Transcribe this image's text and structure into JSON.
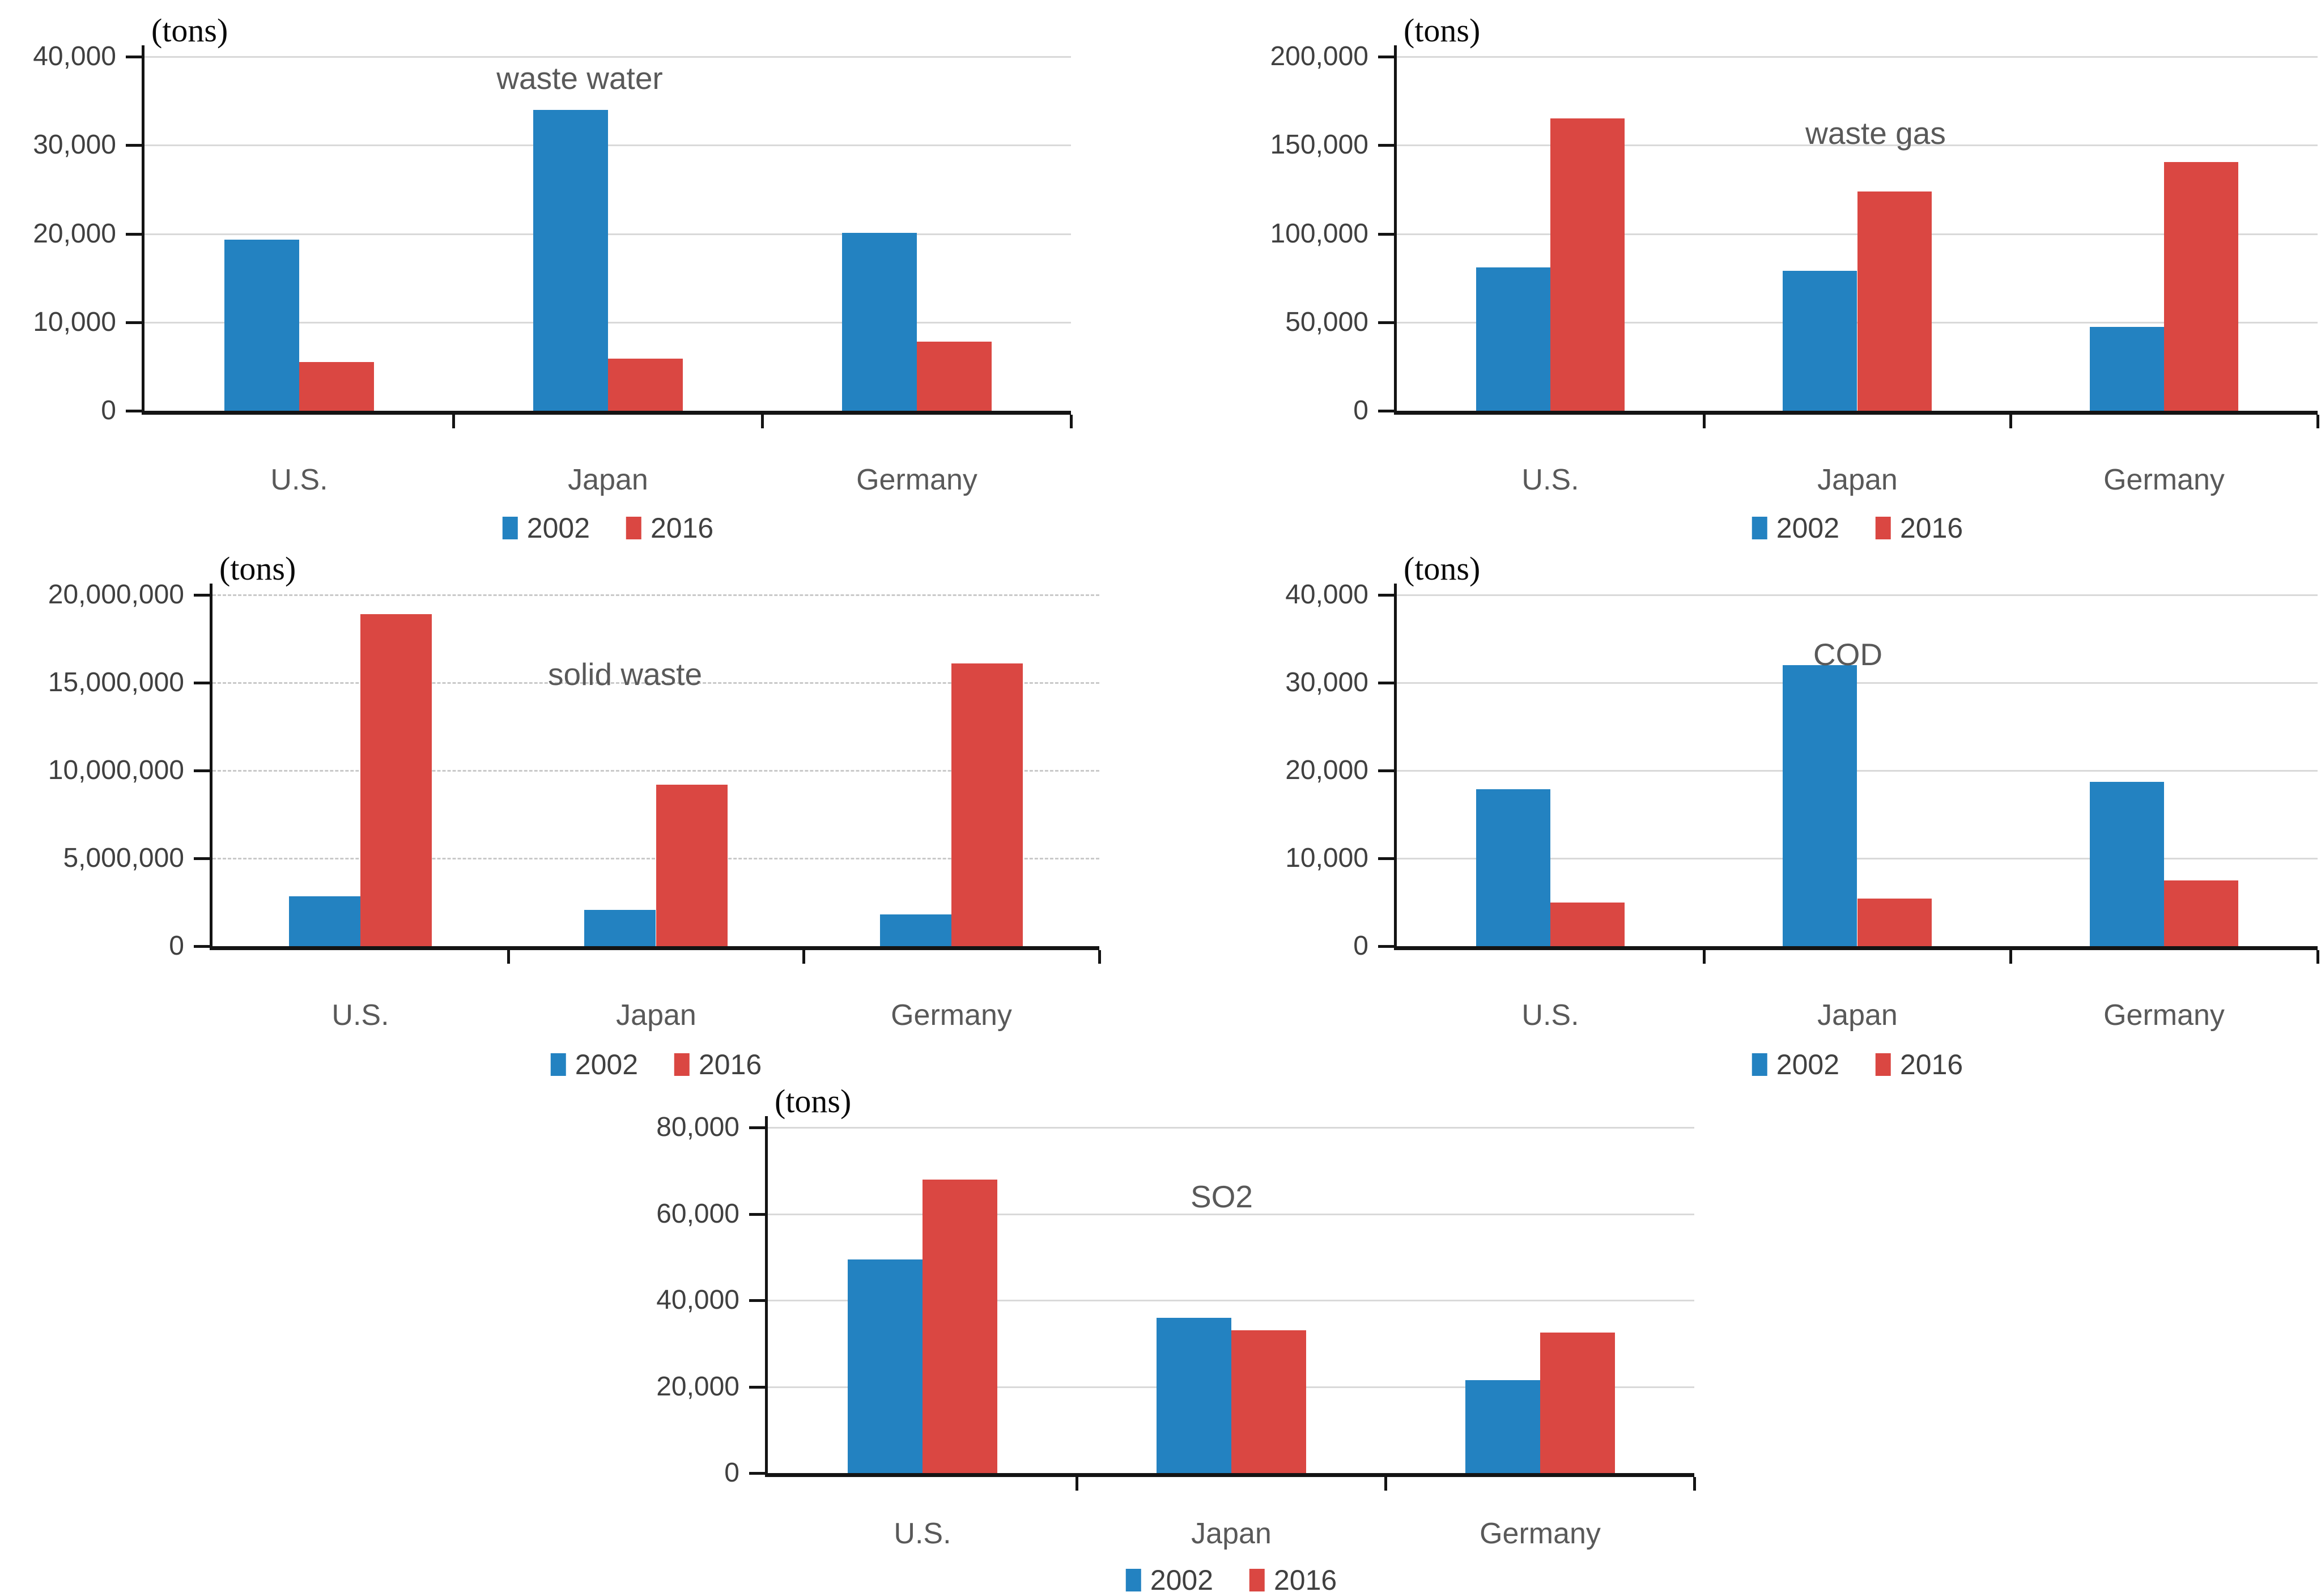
{
  "page": {
    "background": "#FFFFFF"
  },
  "styles": {
    "series_colors": {
      "2002": "#2382C1",
      "2016": "#DA4742"
    },
    "grid_color": "#D9D9D9",
    "axis_color": "#141414",
    "tick_label_color": "#404040",
    "category_label_color": "#595959",
    "title_color": "#595959",
    "unit_label_color": "#0A0A0A"
  },
  "chart_data": [
    {
      "id": "waste-water",
      "type": "bar",
      "title": "waste water",
      "unit_label": "(tons)",
      "categories": [
        "U.S.",
        "Japan",
        "Germany"
      ],
      "series": [
        {
          "name": "2002",
          "color": "#2382C1",
          "values": [
            19300,
            34000,
            20100
          ]
        },
        {
          "name": "2016",
          "color": "#DA4742",
          "values": [
            5500,
            5900,
            7800
          ]
        }
      ],
      "ylim": [
        0,
        40000
      ],
      "yticks": [
        0,
        10000,
        20000,
        30000,
        40000
      ],
      "ytick_labels": [
        "0",
        "10,000",
        "20,000",
        "30,000",
        "40,000"
      ],
      "grid": "solid",
      "gridlines": true,
      "legend_position": "bottom"
    },
    {
      "id": "waste-gas",
      "type": "bar",
      "title": "waste gas",
      "unit_label": "(tons)",
      "categories": [
        "U.S.",
        "Japan",
        "Germany"
      ],
      "series": [
        {
          "name": "2002",
          "color": "#2382C1",
          "values": [
            81000,
            79000,
            47500
          ]
        },
        {
          "name": "2016",
          "color": "#DA4742",
          "values": [
            165000,
            124000,
            140500
          ]
        }
      ],
      "ylim": [
        0,
        200000
      ],
      "yticks": [
        0,
        50000,
        100000,
        150000,
        200000
      ],
      "ytick_labels": [
        "0",
        "50,000",
        "100,000",
        "150,000",
        "200,000"
      ],
      "grid": "solid",
      "gridlines": true,
      "legend_position": "bottom"
    },
    {
      "id": "solid-waste",
      "type": "bar",
      "title": "solid waste",
      "unit_label": "(tons)",
      "categories": [
        "U.S.",
        "Japan",
        "Germany"
      ],
      "series": [
        {
          "name": "2002",
          "color": "#2382C1",
          "values": [
            2850000,
            2050000,
            1800000
          ]
        },
        {
          "name": "2016",
          "color": "#DA4742",
          "values": [
            18900000,
            9200000,
            16100000
          ]
        }
      ],
      "ylim": [
        0,
        20000000
      ],
      "yticks": [
        0,
        5000000,
        10000000,
        15000000,
        20000000
      ],
      "ytick_labels": [
        "0",
        "5,000,000",
        "10,000,000",
        "15,000,000",
        "20,000,000"
      ],
      "grid": "dashed",
      "gridlines": true,
      "legend_position": "bottom"
    },
    {
      "id": "cod",
      "type": "bar",
      "title": "COD",
      "unit_label": "(tons)",
      "categories": [
        "U.S.",
        "Japan",
        "Germany"
      ],
      "series": [
        {
          "name": "2002",
          "color": "#2382C1",
          "values": [
            17900,
            32000,
            18700
          ]
        },
        {
          "name": "2016",
          "color": "#DA4742",
          "values": [
            5000,
            5400,
            7500
          ]
        }
      ],
      "ylim": [
        0,
        40000
      ],
      "yticks": [
        0,
        10000,
        20000,
        30000,
        40000
      ],
      "ytick_labels": [
        "0",
        "10,000",
        "20,000",
        "30,000",
        "40,000"
      ],
      "grid": "solid",
      "gridlines": true,
      "legend_position": "bottom"
    },
    {
      "id": "so2",
      "type": "bar",
      "title": "SO2",
      "unit_label": "(tons)",
      "categories": [
        "U.S.",
        "Japan",
        "Germany"
      ],
      "series": [
        {
          "name": "2002",
          "color": "#2382C1",
          "values": [
            49500,
            36000,
            21500
          ]
        },
        {
          "name": "2016",
          "color": "#DA4742",
          "values": [
            68000,
            33000,
            32500
          ]
        }
      ],
      "ylim": [
        0,
        80000
      ],
      "yticks": [
        0,
        20000,
        40000,
        60000,
        80000
      ],
      "ytick_labels": [
        "0",
        "20,000",
        "40,000",
        "60,000",
        "80,000"
      ],
      "grid": "solid",
      "gridlines": true,
      "legend_position": "bottom"
    }
  ]
}
